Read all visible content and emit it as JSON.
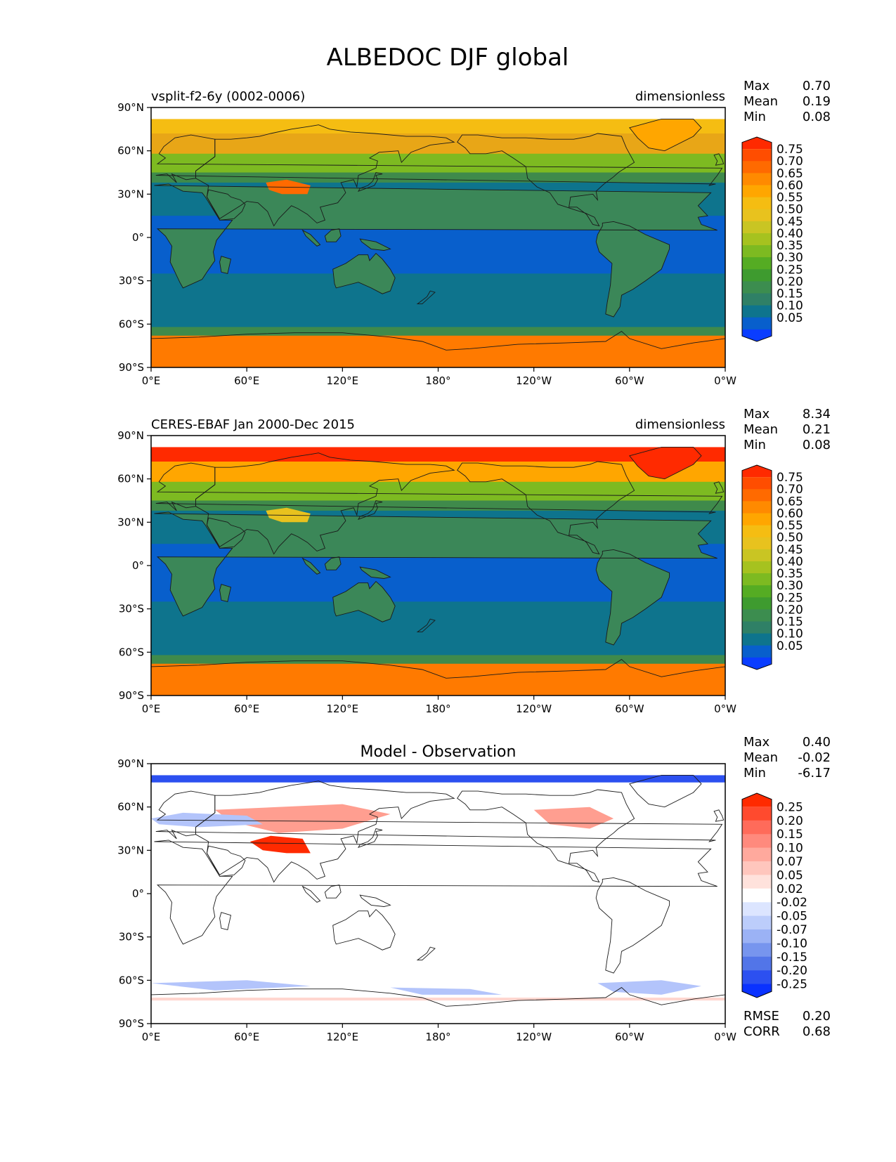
{
  "title": "ALBEDOC DJF global",
  "lon_ticks": [
    "0°E",
    "60°E",
    "120°E",
    "180°",
    "120°W",
    "60°W",
    "0°W"
  ],
  "lat_ticks": [
    "90°N",
    "60°N",
    "30°N",
    "0°",
    "30°S",
    "60°S",
    "90°S"
  ],
  "panels": [
    {
      "id": "model",
      "left_title": "vsplit-f2-6y (0002-0006)",
      "center_title": "",
      "right_title": "dimensionless",
      "stats": [
        {
          "label": "Max",
          "value": "0.70"
        },
        {
          "label": "Mean",
          "value": "0.19"
        },
        {
          "label": "Min",
          "value": "0.08"
        }
      ],
      "colorbar": {
        "labels": [
          "0.75",
          "0.70",
          "0.65",
          "0.60",
          "0.55",
          "0.50",
          "0.45",
          "0.40",
          "0.35",
          "0.30",
          "0.25",
          "0.20",
          "0.15",
          "0.10",
          "0.05"
        ],
        "colors": [
          "#ff2a00",
          "#ff4d00",
          "#ff6a00",
          "#ff8a00",
          "#ffa600",
          "#f5bd12",
          "#e8c21e",
          "#c9c523",
          "#a6c21f",
          "#7dba21",
          "#55ac23",
          "#3e9b2f",
          "#3c8d4f",
          "#2f8066",
          "#0e748d",
          "#085fcc",
          "#0a3dff"
        ]
      },
      "extra_stats": []
    },
    {
      "id": "obs",
      "left_title": "CERES-EBAF Jan 2000-Dec 2015",
      "center_title": "",
      "right_title": "dimensionless",
      "stats": [
        {
          "label": "Max",
          "value": "8.34"
        },
        {
          "label": "Mean",
          "value": "0.21"
        },
        {
          "label": "Min",
          "value": "0.08"
        }
      ],
      "colorbar": {
        "labels": [
          "0.75",
          "0.70",
          "0.65",
          "0.60",
          "0.55",
          "0.50",
          "0.45",
          "0.40",
          "0.35",
          "0.30",
          "0.25",
          "0.20",
          "0.15",
          "0.10",
          "0.05"
        ],
        "colors": [
          "#ff2a00",
          "#ff4d00",
          "#ff6a00",
          "#ff8a00",
          "#ffa600",
          "#f5bd12",
          "#e8c21e",
          "#c9c523",
          "#a6c21f",
          "#7dba21",
          "#55ac23",
          "#3e9b2f",
          "#3c8d4f",
          "#2f8066",
          "#0e748d",
          "#085fcc",
          "#0a3dff"
        ]
      },
      "extra_stats": []
    },
    {
      "id": "diff",
      "left_title": "",
      "center_title": "Model - Observation",
      "right_title": "",
      "stats": [
        {
          "label": "Max",
          "value": "0.40"
        },
        {
          "label": "Mean",
          "value": "-0.02"
        },
        {
          "label": "Min",
          "value": "-6.17"
        }
      ],
      "colorbar": {
        "labels": [
          "0.25",
          "0.20",
          "0.15",
          "0.10",
          "0.07",
          "0.05",
          "0.02",
          "-0.02",
          "-0.05",
          "-0.07",
          "-0.10",
          "-0.15",
          "-0.20",
          "-0.25"
        ],
        "colors": [
          "#ff2a00",
          "#ff4a2e",
          "#ff6b5a",
          "#ff8a7d",
          "#ffa99d",
          "#ffc6bd",
          "#ffe2dc",
          "#ffffff",
          "#dce5ff",
          "#bccdfb",
          "#9bb2f5",
          "#7795ee",
          "#5275e8",
          "#2c50f0",
          "#0a32ff"
        ]
      },
      "extra_stats": [
        {
          "label": "RMSE",
          "value": "0.20"
        },
        {
          "label": "CORR",
          "value": "0.68"
        }
      ]
    }
  ],
  "colors": {
    "model_bands": [
      "#ff7a00",
      "#3c8d4f",
      "#0e748d",
      "#085fcc",
      "#0e748d",
      "#3f8a4b",
      "#7dba21",
      "#e8a617",
      "#f5bd12"
    ],
    "obs_bands": [
      "#ff7a00",
      "#3c8d4f",
      "#0e748d",
      "#085fcc",
      "#0e748d",
      "#3f8a4b",
      "#7dba21",
      "#ffa600",
      "#ff2a00"
    ],
    "land_model": "#3b8758",
    "land_obs": "#3b8758",
    "diff_positive": "#ff3a1a",
    "diff_negative": "#2c50f0"
  }
}
